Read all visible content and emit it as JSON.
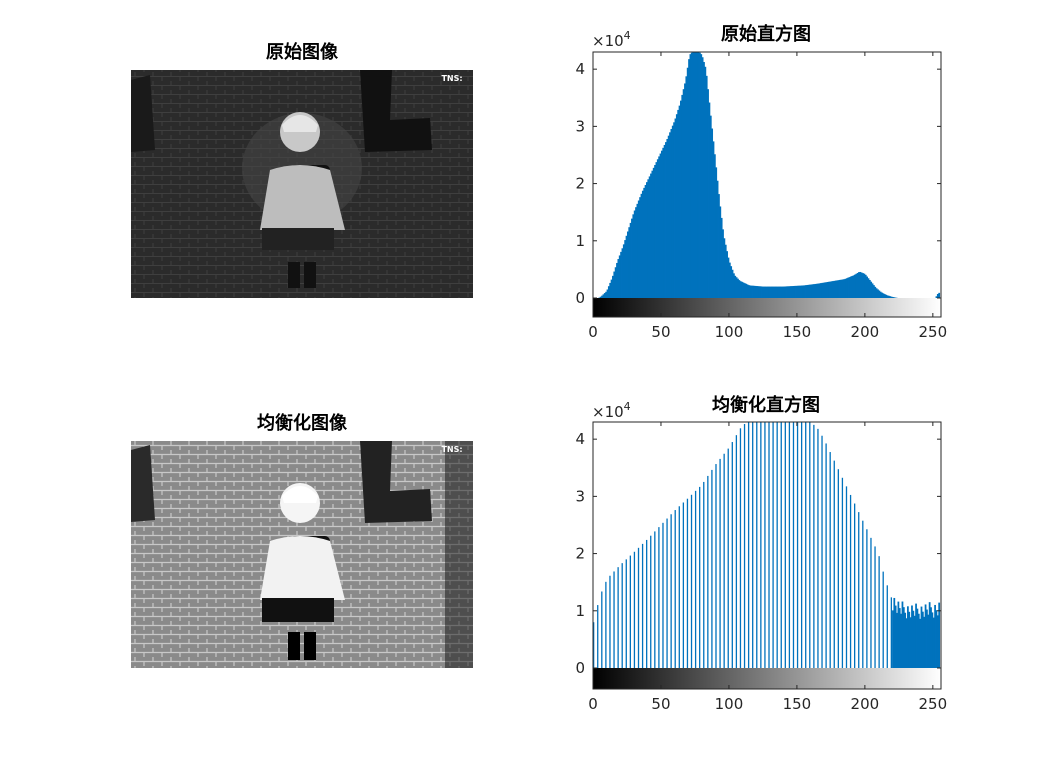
{
  "images": [
    {
      "title": "原始图像",
      "watermark": "TNS:"
    },
    {
      "title": "均衡化图像",
      "watermark": "TNS:"
    }
  ],
  "chart_data": [
    {
      "type": "bar",
      "title": "原始直方图",
      "exponent_label": "×10",
      "exponent_power": "4",
      "scale": 10000,
      "xlim": [
        0,
        256
      ],
      "ylim": [
        0,
        4.3
      ],
      "xticks": [
        0,
        50,
        100,
        150,
        200,
        250
      ],
      "yticks": [
        0,
        1,
        2,
        3,
        4
      ],
      "colorbar": true,
      "color": "#0072BD",
      "profile": [
        [
          0,
          0
        ],
        [
          4,
          0
        ],
        [
          6,
          0.03
        ],
        [
          10,
          0.12
        ],
        [
          14,
          0.35
        ],
        [
          18,
          0.65
        ],
        [
          22,
          0.9
        ],
        [
          26,
          1.2
        ],
        [
          30,
          1.5
        ],
        [
          36,
          1.85
        ],
        [
          42,
          2.15
        ],
        [
          48,
          2.45
        ],
        [
          54,
          2.75
        ],
        [
          60,
          3.1
        ],
        [
          64,
          3.4
        ],
        [
          68,
          3.8
        ],
        [
          71,
          4.25
        ],
        [
          73,
          4.3
        ],
        [
          78,
          4.3
        ],
        [
          80,
          4.25
        ],
        [
          83,
          4.0
        ],
        [
          86,
          3.3
        ],
        [
          90,
          2.4
        ],
        [
          93,
          1.7
        ],
        [
          96,
          1.1
        ],
        [
          100,
          0.65
        ],
        [
          104,
          0.4
        ],
        [
          108,
          0.3
        ],
        [
          115,
          0.22
        ],
        [
          125,
          0.2
        ],
        [
          140,
          0.2
        ],
        [
          155,
          0.22
        ],
        [
          165,
          0.25
        ],
        [
          175,
          0.29
        ],
        [
          185,
          0.33
        ],
        [
          192,
          0.4
        ],
        [
          196,
          0.46
        ],
        [
          200,
          0.42
        ],
        [
          204,
          0.3
        ],
        [
          208,
          0.18
        ],
        [
          212,
          0.1
        ],
        [
          216,
          0.05
        ],
        [
          220,
          0.02
        ],
        [
          224,
          0
        ],
        [
          252,
          0
        ],
        [
          253,
          0.06
        ],
        [
          255,
          0.1
        ]
      ]
    },
    {
      "type": "bar",
      "title": "均衡化直方图",
      "exponent_label": "×10",
      "exponent_power": "4",
      "scale": 10000,
      "xlim": [
        0,
        256
      ],
      "ylim": [
        0,
        4.3
      ],
      "xticks": [
        0,
        50,
        100,
        150,
        200,
        250
      ],
      "yticks": [
        0,
        1,
        2,
        3,
        4
      ],
      "colorbar": true,
      "color": "#0072BD",
      "profile": [
        [
          0,
          0.75
        ],
        [
          2,
          0.95
        ],
        [
          4,
          1.15
        ],
        [
          8,
          1.45
        ],
        [
          12,
          1.6
        ],
        [
          20,
          1.8
        ],
        [
          30,
          2.02
        ],
        [
          40,
          2.25
        ],
        [
          50,
          2.5
        ],
        [
          60,
          2.75
        ],
        [
          70,
          2.97
        ],
        [
          80,
          3.2
        ],
        [
          90,
          3.55
        ],
        [
          100,
          3.85
        ],
        [
          110,
          4.25
        ],
        [
          115,
          4.3
        ],
        [
          160,
          4.3
        ],
        [
          165,
          4.2
        ],
        [
          170,
          4.0
        ],
        [
          180,
          3.5
        ],
        [
          190,
          3.0
        ],
        [
          200,
          2.5
        ],
        [
          210,
          2.0
        ],
        [
          215,
          1.55
        ],
        [
          220,
          1.2
        ],
        [
          225,
          1.05
        ],
        [
          235,
          1.0
        ],
        [
          245,
          1.02
        ],
        [
          255,
          1.05
        ]
      ]
    }
  ]
}
